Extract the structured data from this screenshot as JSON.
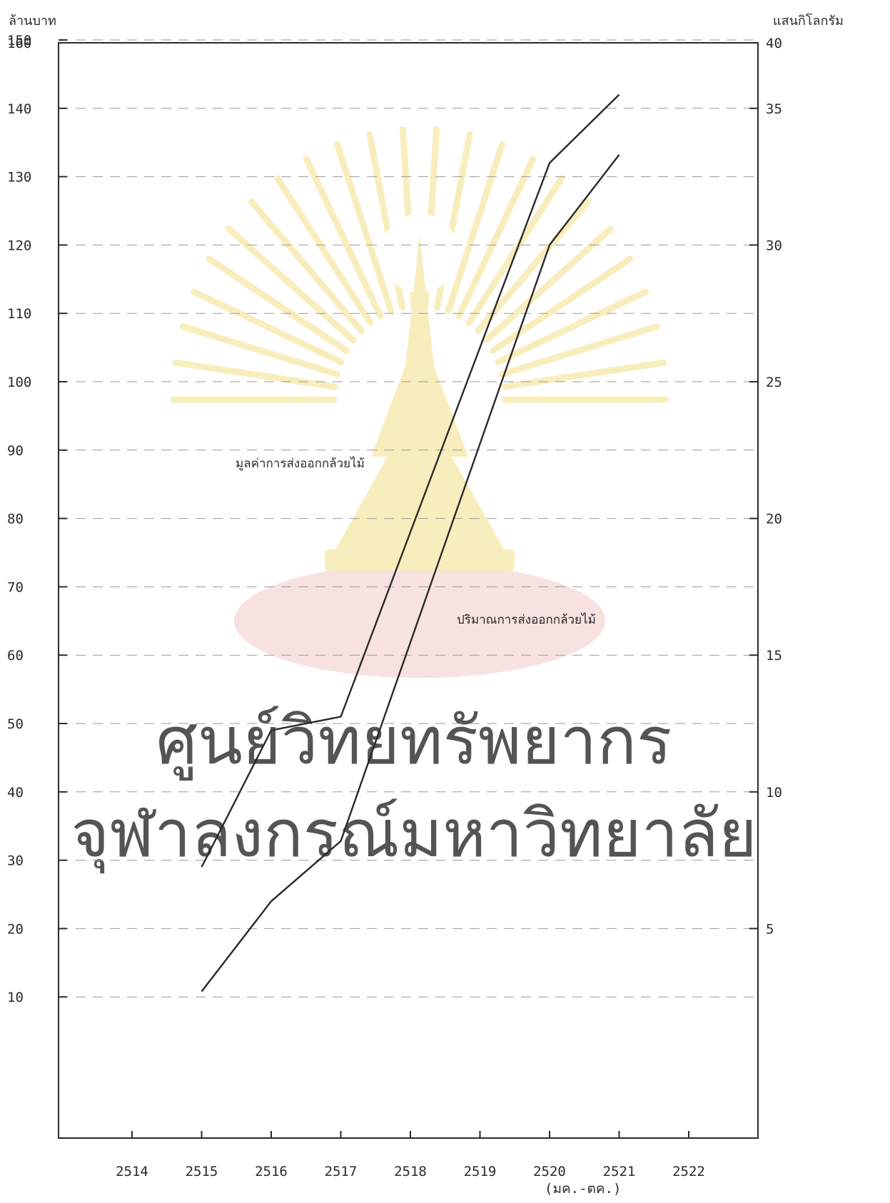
{
  "chart_data": {
    "type": "line",
    "left_axis_unit": "ล้านบาท",
    "right_axis_unit": "แสนกิโลกรัม",
    "x_labels": [
      "2514",
      "2515",
      "2516",
      "2517",
      "2518",
      "2519",
      "2520",
      "2521",
      "2522"
    ],
    "x_note": "(มค.-ตค.)",
    "ylim_left": [
      0,
      160
    ],
    "yticks_left": [
      10,
      20,
      30,
      40,
      50,
      60,
      70,
      80,
      90,
      100,
      110,
      120,
      130,
      140,
      150,
      160
    ],
    "ylim_right": [
      0,
      40
    ],
    "yticks_right": [
      5,
      10,
      15,
      20,
      25,
      30,
      35,
      40
    ],
    "series": [
      {
        "name": "มูลค่าการส่งออกกล้วยไม้",
        "axis": "left",
        "x": [
          2515,
          2516,
          2517,
          2520,
          2521
        ],
        "values": [
          29,
          49,
          51,
          132,
          142
        ]
      },
      {
        "name": "ปริมาณการส่งออกกล้วยไม้",
        "axis": "right",
        "x": [
          2515,
          2516,
          2517,
          2520,
          2521
        ],
        "values": [
          2.7,
          6.0,
          8.2,
          30.0,
          33.3
        ]
      }
    ],
    "grid": "dashed"
  },
  "watermark": {
    "line1": "ศูนย์วิทยทรัพยากร",
    "line2": "จุฬาลงกรณ์มหาวิทยาลัย"
  },
  "colors": {
    "ink": "#2a2a2a",
    "watermark": "#e8bcbc",
    "emblem": "#f3df86"
  }
}
